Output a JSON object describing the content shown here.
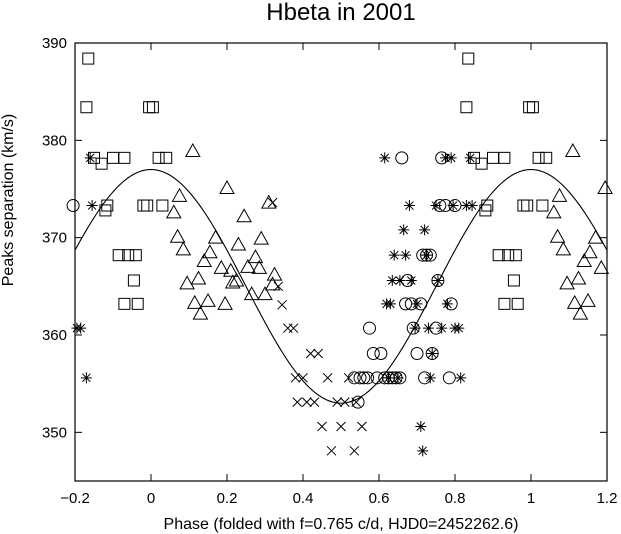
{
  "chart_data": {
    "type": "scatter",
    "title": "Hbeta in 2001",
    "xlabel": "Phase (folded with f=0.765 c/d, HJD0=2452262.6)",
    "ylabel": "Peaks separation (km/s)",
    "xlim": [
      -0.2,
      1.2
    ],
    "ylim": [
      345,
      390
    ],
    "xticks": [
      -0.2,
      0,
      0.2,
      0.4,
      0.6,
      0.8,
      1,
      1.2
    ],
    "xtick_labels": [
      "−0.2",
      "0",
      "0.2",
      "0.4",
      "0.6",
      "0.8",
      "1",
      "1.2"
    ],
    "yticks": [
      350,
      360,
      370,
      380,
      390
    ],
    "ytick_labels": [
      "350",
      "360",
      "370",
      "380",
      "390"
    ],
    "grid": false,
    "legend": "none",
    "fit_curve": {
      "type": "sinusoid",
      "mean": 365,
      "amplitude": 12,
      "max_phase": 0.0,
      "period": 1.0
    },
    "series": [
      {
        "marker": "square",
        "points": [
          [
            -0.165,
            388.4
          ],
          [
            -0.17,
            383.4
          ],
          [
            -0.15,
            378.2
          ],
          [
            -0.13,
            377.6
          ],
          [
            -0.12,
            372.8
          ],
          [
            -0.115,
            373.3
          ],
          [
            -0.1,
            378.2
          ],
          [
            -0.085,
            368.2
          ],
          [
            -0.07,
            378.2
          ],
          [
            -0.07,
            363.2
          ],
          [
            -0.06,
            368.2
          ],
          [
            -0.045,
            365.6
          ],
          [
            -0.04,
            368.2
          ],
          [
            -0.035,
            363.2
          ],
          [
            -0.02,
            373.3
          ],
          [
            -0.01,
            373.3
          ],
          [
            -0.005,
            383.4
          ],
          [
            0.005,
            383.4
          ],
          [
            0.02,
            378.2
          ],
          [
            0.03,
            373.3
          ],
          [
            0.04,
            378.2
          ],
          [
            0.835,
            388.4
          ],
          [
            0.83,
            383.4
          ],
          [
            0.85,
            378.2
          ],
          [
            0.87,
            377.6
          ],
          [
            0.88,
            372.8
          ],
          [
            0.885,
            373.3
          ],
          [
            0.9,
            378.2
          ],
          [
            0.915,
            368.2
          ],
          [
            0.93,
            378.2
          ],
          [
            0.93,
            363.2
          ],
          [
            0.94,
            368.2
          ],
          [
            0.955,
            365.6
          ],
          [
            0.96,
            368.2
          ],
          [
            0.965,
            363.2
          ],
          [
            0.98,
            373.3
          ],
          [
            0.99,
            373.3
          ],
          [
            0.995,
            383.4
          ],
          [
            1.005,
            383.4
          ],
          [
            1.02,
            378.2
          ],
          [
            1.03,
            373.3
          ],
          [
            1.04,
            378.2
          ]
        ]
      },
      {
        "marker": "triangle",
        "points": [
          [
            0.06,
            372.6
          ],
          [
            0.07,
            370.1
          ],
          [
            0.075,
            374.3
          ],
          [
            0.085,
            368.8
          ],
          [
            0.095,
            365.3
          ],
          [
            0.11,
            378.9
          ],
          [
            0.115,
            363.3
          ],
          [
            0.125,
            365.8
          ],
          [
            0.13,
            362.2
          ],
          [
            0.14,
            367.6
          ],
          [
            0.15,
            363.5
          ],
          [
            0.155,
            368.5
          ],
          [
            0.17,
            370.0
          ],
          [
            0.185,
            366.9
          ],
          [
            0.195,
            363.2
          ],
          [
            0.2,
            375.1
          ],
          [
            0.21,
            366.6
          ],
          [
            0.215,
            365.4
          ],
          [
            0.225,
            365.6
          ],
          [
            0.23,
            369.3
          ],
          [
            0.245,
            372.2
          ],
          [
            0.255,
            367.0
          ],
          [
            0.265,
            364.2
          ],
          [
            0.275,
            368.0
          ],
          [
            0.285,
            366.9
          ],
          [
            0.29,
            369.9
          ],
          [
            0.3,
            364.2
          ],
          [
            0.31,
            373.6
          ],
          [
            0.32,
            365.2
          ],
          [
            0.325,
            366.2
          ],
          [
            1.06,
            372.6
          ],
          [
            1.07,
            370.1
          ],
          [
            1.075,
            374.3
          ],
          [
            1.085,
            368.8
          ],
          [
            1.095,
            365.3
          ],
          [
            1.11,
            378.9
          ],
          [
            1.115,
            363.3
          ],
          [
            1.125,
            365.8
          ],
          [
            1.13,
            362.2
          ],
          [
            1.14,
            367.6
          ],
          [
            1.15,
            363.5
          ],
          [
            1.155,
            368.5
          ],
          [
            1.17,
            370.0
          ],
          [
            1.185,
            366.9
          ],
          [
            1.195,
            375.1
          ]
        ]
      },
      {
        "marker": "cross",
        "points": [
          [
            0.32,
            373.6
          ],
          [
            0.335,
            365.0
          ],
          [
            0.345,
            363.1
          ],
          [
            0.36,
            360.7
          ],
          [
            0.375,
            360.7
          ],
          [
            0.38,
            355.6
          ],
          [
            0.385,
            353.1
          ],
          [
            0.4,
            355.6
          ],
          [
            0.41,
            353.1
          ],
          [
            0.42,
            358.1
          ],
          [
            0.43,
            353.1
          ],
          [
            0.44,
            358.1
          ],
          [
            0.45,
            350.6
          ],
          [
            0.465,
            355.6
          ],
          [
            0.475,
            348.1
          ],
          [
            0.49,
            353.1
          ],
          [
            0.5,
            350.6
          ],
          [
            0.51,
            353.1
          ],
          [
            0.52,
            355.6
          ],
          [
            0.535,
            348.1
          ],
          [
            0.54,
            353.1
          ],
          [
            0.555,
            350.6
          ]
        ]
      },
      {
        "marker": "asterisk",
        "points": [
          [
            -0.195,
            360.7
          ],
          [
            -0.185,
            360.7
          ],
          [
            -0.17,
            355.6
          ],
          [
            -0.16,
            378.2
          ],
          [
            -0.155,
            373.3
          ],
          [
            0.615,
            378.2
          ],
          [
            0.62,
            363.2
          ],
          [
            0.625,
            355.6
          ],
          [
            0.63,
            363.2
          ],
          [
            0.635,
            365.6
          ],
          [
            0.64,
            368.2
          ],
          [
            0.65,
            355.6
          ],
          [
            0.655,
            365.6
          ],
          [
            0.665,
            370.8
          ],
          [
            0.67,
            368.2
          ],
          [
            0.68,
            373.3
          ],
          [
            0.685,
            365.6
          ],
          [
            0.695,
            360.7
          ],
          [
            0.7,
            363.2
          ],
          [
            0.71,
            350.6
          ],
          [
            0.715,
            348.1
          ],
          [
            0.72,
            370.8
          ],
          [
            0.725,
            368.2
          ],
          [
            0.73,
            360.7
          ],
          [
            0.735,
            355.6
          ],
          [
            0.74,
            358.1
          ],
          [
            0.75,
            373.3
          ],
          [
            0.755,
            365.6
          ],
          [
            0.765,
            360.7
          ],
          [
            0.775,
            378.2
          ],
          [
            0.78,
            363.2
          ],
          [
            0.79,
            378.2
          ],
          [
            0.795,
            373.3
          ],
          [
            0.8,
            360.7
          ],
          [
            0.81,
            360.7
          ],
          [
            0.815,
            355.6
          ],
          [
            0.83,
            373.3
          ],
          [
            0.84,
            378.2
          ],
          [
            0.845,
            373.3
          ]
        ]
      },
      {
        "marker": "circle",
        "points": [
          [
            -0.205,
            373.3
          ],
          [
            0.535,
            355.6
          ],
          [
            0.545,
            353.1
          ],
          [
            0.55,
            355.6
          ],
          [
            0.56,
            355.6
          ],
          [
            0.57,
            355.6
          ],
          [
            0.575,
            360.7
          ],
          [
            0.585,
            358.1
          ],
          [
            0.595,
            355.6
          ],
          [
            0.605,
            358.1
          ],
          [
            0.615,
            355.6
          ],
          [
            0.625,
            355.6
          ],
          [
            0.635,
            355.6
          ],
          [
            0.645,
            355.6
          ],
          [
            0.655,
            355.6
          ],
          [
            0.66,
            378.2
          ],
          [
            0.67,
            363.2
          ],
          [
            0.675,
            365.6
          ],
          [
            0.685,
            363.2
          ],
          [
            0.69,
            360.7
          ],
          [
            0.7,
            358.1
          ],
          [
            0.71,
            363.2
          ],
          [
            0.715,
            368.2
          ],
          [
            0.72,
            355.6
          ],
          [
            0.725,
            368.2
          ],
          [
            0.735,
            368.2
          ],
          [
            0.74,
            358.1
          ],
          [
            0.75,
            360.7
          ],
          [
            0.755,
            365.6
          ],
          [
            0.76,
            373.3
          ],
          [
            0.765,
            378.2
          ],
          [
            0.775,
            373.3
          ],
          [
            0.785,
            355.6
          ],
          [
            0.79,
            363.2
          ],
          [
            0.8,
            373.3
          ]
        ]
      }
    ]
  }
}
